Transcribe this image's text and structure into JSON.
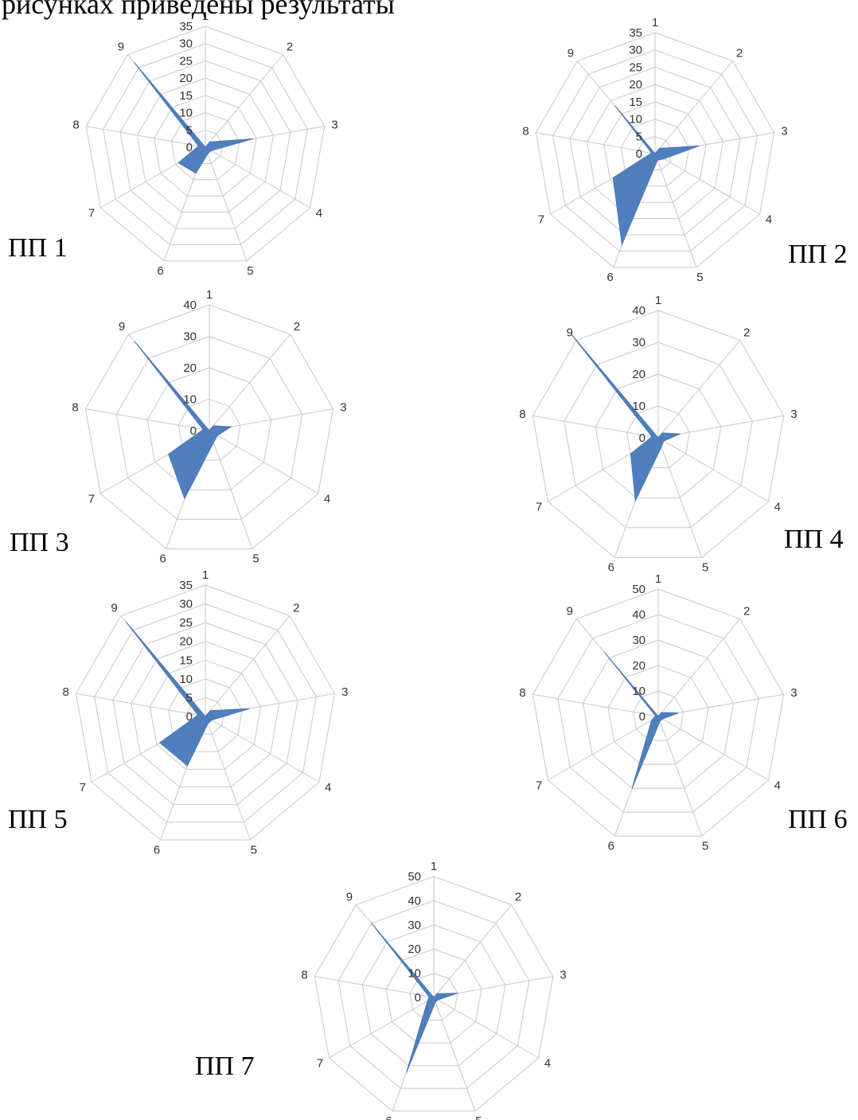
{
  "header": {
    "text": "рисунках приведены результаты"
  },
  "chart_data": [
    {
      "type": "radar",
      "label": "ПП 1",
      "axes": [
        "1",
        "2",
        "3",
        "4",
        "5",
        "6",
        "7",
        "8",
        "9"
      ],
      "ticks": [
        0,
        5,
        10,
        15,
        20,
        25,
        30,
        35
      ],
      "rmax": 35,
      "values": [
        0,
        2,
        14,
        2,
        2,
        8,
        9,
        2,
        32
      ]
    },
    {
      "type": "radar",
      "label": "ПП 2",
      "axes": [
        "1",
        "2",
        "3",
        "4",
        "5",
        "6",
        "7",
        "8",
        "9"
      ],
      "ticks": [
        0,
        5,
        10,
        15,
        20,
        25,
        30,
        35
      ],
      "rmax": 35,
      "values": [
        0,
        2,
        13,
        3,
        2,
        28,
        14,
        1,
        18
      ]
    },
    {
      "type": "radar",
      "label": "ПП 3",
      "axes": [
        "1",
        "2",
        "3",
        "4",
        "5",
        "6",
        "7",
        "8",
        "9"
      ],
      "ticks": [
        0,
        10,
        20,
        30,
        40
      ],
      "rmax": 40,
      "values": [
        0,
        2,
        7,
        3,
        4,
        23,
        15,
        2,
        37
      ]
    },
    {
      "type": "radar",
      "label": "ПП 4",
      "axes": [
        "1",
        "2",
        "3",
        "4",
        "5",
        "6",
        "7",
        "8",
        "9"
      ],
      "ticks": [
        0,
        10,
        20,
        30,
        40
      ],
      "rmax": 40,
      "values": [
        0,
        2,
        7,
        2,
        3,
        21,
        10,
        2,
        43
      ]
    },
    {
      "type": "radar",
      "label": "ПП 5",
      "axes": [
        "1",
        "2",
        "3",
        "4",
        "5",
        "6",
        "7",
        "8",
        "9"
      ],
      "ticks": [
        0,
        5,
        10,
        15,
        20,
        25,
        30,
        35
      ],
      "rmax": 35,
      "values": [
        0,
        2,
        12,
        2,
        2,
        14,
        14,
        2,
        33
      ]
    },
    {
      "type": "radar",
      "label": "ПП 6",
      "axes": [
        "1",
        "2",
        "3",
        "4",
        "5",
        "6",
        "7",
        "8",
        "9"
      ],
      "ticks": [
        0,
        10,
        20,
        30,
        40,
        50
      ],
      "rmax": 50,
      "values": [
        0,
        2,
        8,
        2,
        2,
        30,
        3,
        1,
        33
      ]
    },
    {
      "type": "radar",
      "label": "ПП 7",
      "axes": [
        "1",
        "2",
        "3",
        "4",
        "5",
        "6",
        "7",
        "8",
        "9"
      ],
      "ticks": [
        0,
        10,
        20,
        30,
        40,
        50
      ],
      "rmax": 50,
      "values": [
        0,
        2,
        10,
        2,
        2,
        33,
        3,
        2,
        40
      ]
    }
  ]
}
